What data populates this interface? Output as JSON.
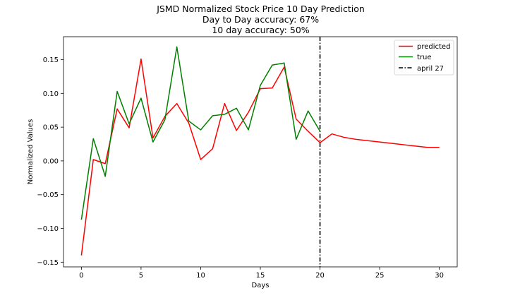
{
  "chart_data": {
    "type": "line",
    "title": "JSMD Normalized Stock Price 10 Day Prediction",
    "subtitle_lines": [
      "Day to Day accuracy: 67%",
      "10 day accuracy: 50%"
    ],
    "xlabel": "Days",
    "ylabel": "Normalized Values",
    "xlim": [
      -1.5,
      31.5
    ],
    "ylim": [
      -0.157,
      0.184
    ],
    "xticks": [
      0,
      5,
      10,
      15,
      20,
      25,
      30
    ],
    "yticks": [
      -0.15,
      -0.1,
      -0.05,
      0.0,
      0.05,
      0.1,
      0.15
    ],
    "ytick_labels": [
      "−0.15",
      "−0.10",
      "−0.05",
      "0.00",
      "0.05",
      "0.10",
      "0.15"
    ],
    "grid": false,
    "legend_position": "top-right",
    "series": [
      {
        "name": "predicted",
        "color": "#ff0000",
        "x": [
          0,
          1,
          2,
          3,
          4,
          5,
          6,
          7,
          8,
          9,
          10,
          11,
          12,
          13,
          14,
          15,
          16,
          17,
          18,
          19,
          20,
          21,
          22,
          23,
          24,
          25,
          26,
          27,
          28,
          29,
          30
        ],
        "y": [
          -0.14,
          0.002,
          -0.004,
          0.077,
          0.049,
          0.151,
          0.034,
          0.066,
          0.085,
          0.056,
          0.002,
          0.018,
          0.085,
          0.045,
          0.072,
          0.107,
          0.108,
          0.139,
          0.062,
          0.044,
          0.027,
          0.04,
          0.035,
          0.032,
          0.03,
          0.028,
          0.026,
          0.024,
          0.022,
          0.02,
          0.02
        ]
      },
      {
        "name": "true",
        "color": "#008000",
        "x": [
          0,
          1,
          2,
          3,
          4,
          5,
          6,
          7,
          8,
          9,
          10,
          11,
          12,
          13,
          14,
          15,
          16,
          17,
          18,
          19,
          20
        ],
        "y": [
          -0.087,
          0.033,
          -0.023,
          0.103,
          0.055,
          0.093,
          0.028,
          0.061,
          0.169,
          0.059,
          0.046,
          0.067,
          0.069,
          0.078,
          0.046,
          0.112,
          0.142,
          0.145,
          0.032,
          0.074,
          0.044
        ]
      }
    ],
    "vline": {
      "name": "april 27",
      "x": 20,
      "color": "#000000",
      "style": "dashdot"
    }
  }
}
